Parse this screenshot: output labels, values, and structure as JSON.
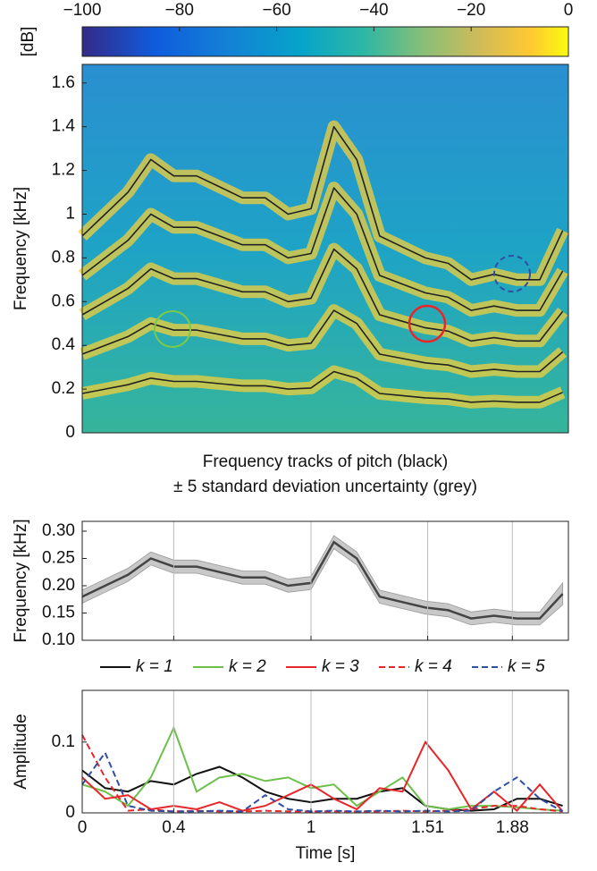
{
  "chart_data": [
    {
      "type": "spectrogram",
      "ylabel": "Frequency [kHz]",
      "colorbar": {
        "label": "[dB]",
        "lim": [
          -100,
          0
        ],
        "ticks": [
          {
            "value": -100,
            "label": "−100"
          },
          {
            "value": -80,
            "label": "−80"
          },
          {
            "value": -60,
            "label": "−60"
          },
          {
            "value": -40,
            "label": "−40"
          },
          {
            "value": -20,
            "label": "−20"
          },
          0
        ]
      },
      "caption_lines": [
        "Frequency tracks of pitch (black)",
        "± 5 standard deviation uncertainty (grey)"
      ],
      "xlim": [
        0,
        2.125
      ],
      "ylim": [
        0,
        1.685
      ],
      "yticks": [
        0,
        0.2,
        0.4,
        0.6,
        0.8,
        1,
        1.2,
        1.4,
        1.6
      ],
      "x": [
        0,
        0.1,
        0.2,
        0.3,
        0.4,
        0.5,
        0.6,
        0.7,
        0.8,
        0.9,
        1.0,
        1.1,
        1.2,
        1.3,
        1.4,
        1.5,
        1.6,
        1.7,
        1.8,
        1.9,
        2.0,
        2.1
      ],
      "series": [
        {
          "color": "#222222",
          "values": [
            0.18,
            0.2,
            0.22,
            0.25,
            0.235,
            0.235,
            0.225,
            0.215,
            0.215,
            0.2,
            0.205,
            0.28,
            0.25,
            0.18,
            0.17,
            0.16,
            0.155,
            0.14,
            0.145,
            0.14,
            0.14,
            0.185
          ]
        },
        {
          "color": "#222222",
          "values": [
            0.36,
            0.4,
            0.44,
            0.5,
            0.47,
            0.47,
            0.45,
            0.43,
            0.43,
            0.4,
            0.41,
            0.56,
            0.5,
            0.36,
            0.34,
            0.32,
            0.31,
            0.28,
            0.29,
            0.28,
            0.28,
            0.37
          ]
        },
        {
          "color": "#222222",
          "values": [
            0.54,
            0.6,
            0.66,
            0.75,
            0.705,
            0.705,
            0.675,
            0.645,
            0.645,
            0.6,
            0.615,
            0.84,
            0.75,
            0.54,
            0.51,
            0.48,
            0.465,
            0.42,
            0.435,
            0.42,
            0.42,
            0.555
          ]
        },
        {
          "color": "#222222",
          "values": [
            0.72,
            0.8,
            0.88,
            1.0,
            0.94,
            0.94,
            0.9,
            0.86,
            0.86,
            0.8,
            0.82,
            1.12,
            1.0,
            0.72,
            0.68,
            0.64,
            0.62,
            0.56,
            0.58,
            0.56,
            0.56,
            0.74
          ]
        },
        {
          "color": "#222222",
          "values": [
            0.9,
            1.0,
            1.1,
            1.25,
            1.175,
            1.175,
            1.125,
            1.075,
            1.075,
            1.0,
            1.025,
            1.4,
            1.25,
            0.9,
            0.85,
            0.8,
            0.775,
            0.7,
            0.725,
            0.7,
            0.7,
            0.925
          ]
        }
      ]
    },
    {
      "type": "band-line",
      "ylabel": "Frequency [kHz]",
      "xgrid": true,
      "xtick_labels": false,
      "xlim": [
        0,
        2.125
      ],
      "xticks": [
        0,
        0.4,
        1,
        1.51,
        1.88
      ],
      "ylim": [
        0.1,
        0.318
      ],
      "yticks": [
        {
          "value": 0.1,
          "label": "0.10"
        },
        {
          "value": 0.15,
          "label": "0.15"
        },
        {
          "value": 0.2,
          "label": "0.20"
        },
        {
          "value": 0.25,
          "label": "0.25"
        },
        {
          "value": 0.3,
          "label": "0.30"
        }
      ],
      "x": [
        0,
        0.1,
        0.2,
        0.3,
        0.4,
        0.5,
        0.6,
        0.7,
        0.8,
        0.9,
        1.0,
        1.1,
        1.2,
        1.3,
        1.4,
        1.5,
        1.6,
        1.7,
        1.8,
        1.9,
        2.0,
        2.1
      ],
      "series": [
        {
          "color": "#444444",
          "band_color": "#c8c8c8",
          "values": [
            0.18,
            0.2,
            0.22,
            0.25,
            0.235,
            0.235,
            0.225,
            0.215,
            0.215,
            0.2,
            0.205,
            0.28,
            0.25,
            0.18,
            0.17,
            0.16,
            0.155,
            0.14,
            0.145,
            0.14,
            0.14,
            0.185
          ],
          "lower": [
            0.168,
            0.188,
            0.208,
            0.238,
            0.223,
            0.223,
            0.213,
            0.203,
            0.203,
            0.188,
            0.193,
            0.268,
            0.238,
            0.168,
            0.158,
            0.148,
            0.143,
            0.128,
            0.133,
            0.128,
            0.128,
            0.165
          ],
          "upper": [
            0.192,
            0.212,
            0.232,
            0.262,
            0.247,
            0.247,
            0.237,
            0.227,
            0.227,
            0.212,
            0.217,
            0.292,
            0.262,
            0.192,
            0.182,
            0.172,
            0.167,
            0.152,
            0.157,
            0.152,
            0.152,
            0.205
          ]
        }
      ]
    },
    {
      "type": "line",
      "ylabel": "Amplitude",
      "xlabel": "Time [s]",
      "xgrid": true,
      "xtick_labels": true,
      "xlim": [
        0,
        2.125
      ],
      "xticks": [
        0,
        0.4,
        1,
        1.51,
        1.88
      ],
      "ylim": [
        0,
        0.173
      ],
      "yticks": [
        0,
        0.1
      ],
      "x": [
        0,
        0.1,
        0.2,
        0.3,
        0.4,
        0.5,
        0.6,
        0.7,
        0.8,
        0.9,
        1.0,
        1.1,
        1.2,
        1.3,
        1.4,
        1.5,
        1.6,
        1.7,
        1.8,
        1.9,
        2.0,
        2.1
      ],
      "series": [
        {
          "name": "k = 1",
          "color": "#111111",
          "dash": false,
          "values": [
            0.06,
            0.035,
            0.03,
            0.045,
            0.04,
            0.055,
            0.065,
            0.05,
            0.03,
            0.02,
            0.015,
            0.02,
            0.02,
            0.03,
            0.035,
            0.01,
            0.005,
            0.003,
            0.005,
            0.02,
            0.02,
            0.01
          ]
        },
        {
          "name": "k = 2",
          "color": "#6cc04a",
          "dash": false,
          "values": [
            0.04,
            0.03,
            0.01,
            0.05,
            0.12,
            0.03,
            0.05,
            0.055,
            0.045,
            0.05,
            0.035,
            0.04,
            0.01,
            0.03,
            0.05,
            0.01,
            0.005,
            0.01,
            0.01,
            0.008,
            0.005,
            0.003
          ]
        },
        {
          "name": "k = 3",
          "color": "#e8262a",
          "dash": false,
          "values": [
            0.05,
            0.02,
            0.025,
            0.005,
            0.01,
            0.005,
            0.015,
            0.003,
            0.01,
            0.025,
            0.04,
            0.02,
            0.005,
            0.035,
            0.03,
            0.1,
            0.06,
            0.005,
            0.03,
            0.003,
            0.04,
            0.002
          ]
        },
        {
          "name": "k = 4",
          "color": "#e8262a",
          "dash": true,
          "values": [
            0.11,
            0.05,
            0.003,
            0.005,
            0.002,
            0.003,
            0.002,
            0.002,
            0.003,
            0.002,
            0.002,
            0.002,
            0.002,
            0.002,
            0.003,
            0.002,
            0.003,
            0.005,
            0.01,
            0.01,
            0.005,
            0.002
          ]
        },
        {
          "name": "k = 5",
          "color": "#2f4fa3",
          "dash": true,
          "values": [
            0.04,
            0.085,
            0.01,
            0.003,
            0.002,
            0.002,
            0.003,
            0.002,
            0.025,
            0.005,
            0.002,
            0.003,
            0.002,
            0.003,
            0.002,
            0.003,
            0.002,
            0.003,
            0.03,
            0.05,
            0.02,
            0.002
          ]
        }
      ]
    }
  ]
}
